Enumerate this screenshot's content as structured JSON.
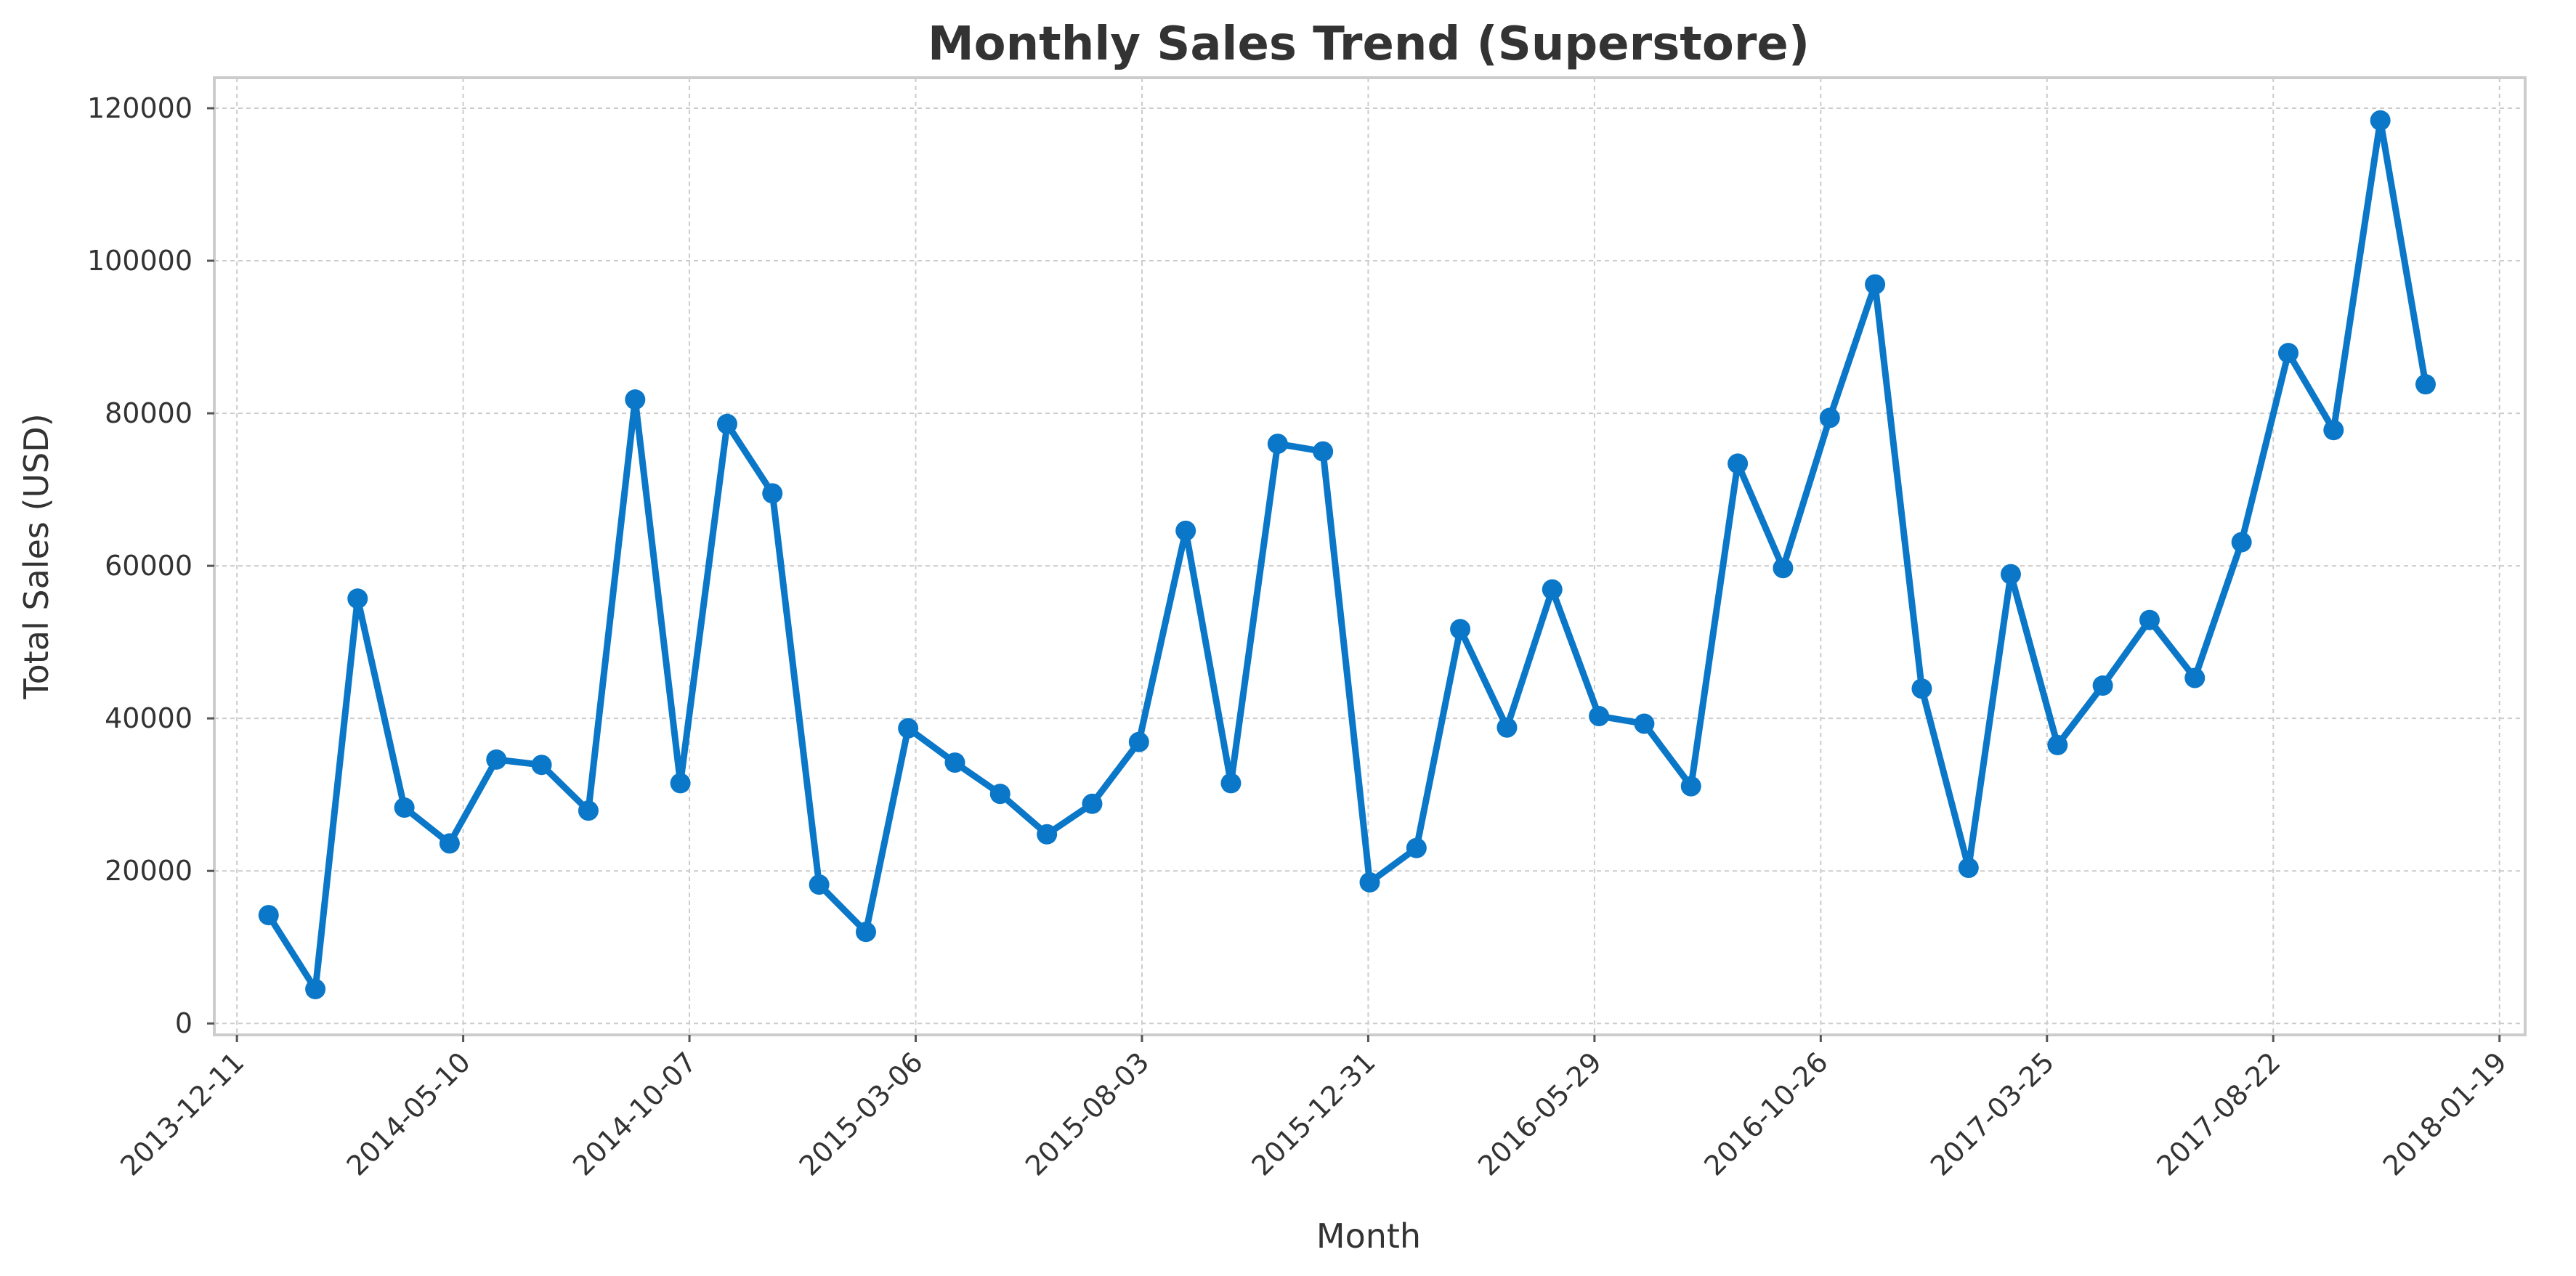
{
  "chart_data": {
    "type": "line",
    "title": "Monthly Sales Trend (Superstore)",
    "xlabel": "Month",
    "ylabel": "Total Sales (USD)",
    "x_tick_labels": [
      "2013-12-11",
      "2014-05-10",
      "2014-10-07",
      "2015-03-06",
      "2015-08-03",
      "2015-12-31",
      "2016-05-29",
      "2016-10-26",
      "2017-03-25",
      "2017-08-22",
      "2018-01-19"
    ],
    "y_tick_labels": [
      "0",
      "20000",
      "40000",
      "60000",
      "80000",
      "100000",
      "120000"
    ],
    "xlim": [
      "2013-11-26",
      "2018-02-05"
    ],
    "ylim": [
      -1500,
      124000
    ],
    "grid": true,
    "line_color": "#0a77c8",
    "series": [
      {
        "x": [
          "2014-01-01",
          "2014-02-01",
          "2014-03-01",
          "2014-04-01",
          "2014-05-01",
          "2014-06-01",
          "2014-07-01",
          "2014-08-01",
          "2014-09-01",
          "2014-10-01",
          "2014-11-01",
          "2014-12-01",
          "2015-01-01",
          "2015-02-01",
          "2015-03-01",
          "2015-04-01",
          "2015-05-01",
          "2015-06-01",
          "2015-07-01",
          "2015-08-01",
          "2015-09-01",
          "2015-10-01",
          "2015-11-01",
          "2015-12-01",
          "2016-01-01",
          "2016-02-01",
          "2016-03-01",
          "2016-04-01",
          "2016-05-01",
          "2016-06-01",
          "2016-07-01",
          "2016-08-01",
          "2016-09-01",
          "2016-10-01",
          "2016-11-01",
          "2016-12-01",
          "2017-01-01",
          "2017-02-01",
          "2017-03-01",
          "2017-04-01",
          "2017-05-01",
          "2017-06-01",
          "2017-07-01",
          "2017-08-01",
          "2017-09-01",
          "2017-10-01",
          "2017-11-01",
          "2017-12-01"
        ],
        "values": [
          14200,
          4500,
          55700,
          28300,
          23600,
          34600,
          33900,
          27900,
          81800,
          31500,
          78600,
          69500,
          18200,
          12000,
          38700,
          34200,
          30100,
          24800,
          28800,
          36900,
          64600,
          31500,
          76000,
          75000,
          18500,
          23000,
          51700,
          38800,
          56900,
          40300,
          39300,
          31100,
          73400,
          59700,
          79400,
          96900,
          43900,
          20400,
          58900,
          36500,
          44300,
          52900,
          45300,
          63100,
          87900,
          77800,
          118400,
          83800
        ]
      }
    ]
  }
}
